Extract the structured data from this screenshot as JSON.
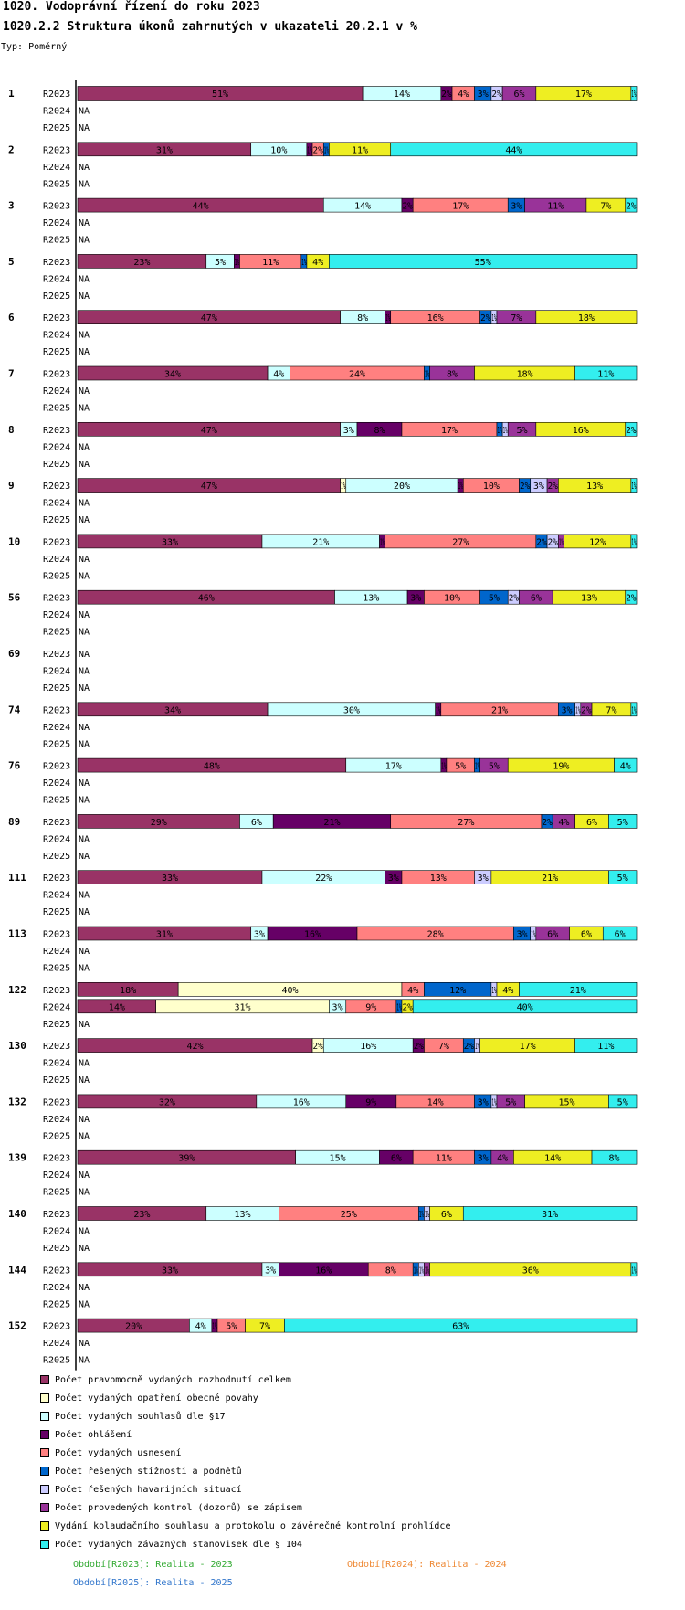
{
  "header": {
    "title": "1020. Vodoprávní řízení do roku 2023",
    "subtitle": "1020.2.2 Struktura úkonů zahrnutých v ukazateli 20.2.1 v %",
    "type_label": "Typ: Poměrný"
  },
  "na_label": "NA",
  "periods_text": [
    {
      "label": "Období[R2023]: Realita - 2023",
      "color": "#33aa33"
    },
    {
      "label": "Období[R2024]: Realita - 2024",
      "color": "#ee8833"
    },
    {
      "label": "Období[R2025]: Realita - 2025",
      "color": "#3377cc"
    }
  ],
  "chart_data": {
    "type": "bar",
    "orientation": "horizontal",
    "stacked": true,
    "title": "1020.2.2 Struktura úkonů zahrnutých v ukazateli 20.2.1 v %",
    "xlim": [
      0,
      100
    ],
    "row_labels": [
      "R2023",
      "R2024",
      "R2025"
    ],
    "series": [
      {
        "name": "Počet pravomocně vydaných rozhodnutí celkem",
        "color": "#993366"
      },
      {
        "name": "Počet vydaných opatření obecné povahy",
        "color": "#ffffcc"
      },
      {
        "name": "Počet vydaných souhlasů dle §17",
        "color": "#ccffff"
      },
      {
        "name": "Počet ohlášení",
        "color": "#660066"
      },
      {
        "name": "Počet vydaných usnesení",
        "color": "#ff8080"
      },
      {
        "name": "Počet řešených stížností a podnětů",
        "color": "#0066cc"
      },
      {
        "name": "Počet řešených havarijních situací",
        "color": "#ccccff"
      },
      {
        "name": "Počet provedených kontrol (dozorů) se zápisem",
        "color": "#993399"
      },
      {
        "name": "Vydání kolaudačního souhlasu a protokolu o závěrečné kontrolní prohlídce",
        "color": "#eeee22"
      },
      {
        "name": "Počet vydaných závazných stanovisek dle § 104",
        "color": "#33eeee"
      }
    ],
    "groups": [
      {
        "label": "1",
        "rows": [
          [
            51,
            0,
            14,
            2,
            4,
            3,
            2,
            6,
            17,
            1
          ],
          null,
          null
        ]
      },
      {
        "label": "2",
        "rows": [
          [
            31,
            0,
            10,
            1,
            2,
            1,
            0,
            0,
            11,
            44
          ],
          null,
          null
        ]
      },
      {
        "label": "3",
        "rows": [
          [
            44,
            0,
            14,
            2,
            17,
            3,
            0,
            11,
            7,
            2
          ],
          null,
          null
        ]
      },
      {
        "label": "5",
        "rows": [
          [
            23,
            0,
            5,
            1,
            11,
            1,
            0,
            0,
            4,
            55
          ],
          null,
          null
        ]
      },
      {
        "label": "6",
        "rows": [
          [
            47,
            0,
            8,
            1,
            16,
            2,
            1,
            7,
            18,
            0
          ],
          null,
          null
        ]
      },
      {
        "label": "7",
        "rows": [
          [
            34,
            0,
            4,
            0,
            24,
            1,
            0,
            8,
            18,
            11
          ],
          null,
          null
        ]
      },
      {
        "label": "8",
        "rows": [
          [
            47,
            0,
            3,
            8,
            17,
            1,
            1,
            5,
            16,
            2
          ],
          null,
          null
        ]
      },
      {
        "label": "9",
        "rows": [
          [
            47,
            1,
            20,
            1,
            10,
            2,
            3,
            2,
            13,
            1
          ],
          null,
          null
        ]
      },
      {
        "label": "10",
        "rows": [
          [
            33,
            0,
            21,
            1,
            27,
            2,
            2,
            1,
            12,
            1
          ],
          null,
          null
        ]
      },
      {
        "label": "56",
        "rows": [
          [
            46,
            0,
            13,
            3,
            10,
            5,
            2,
            6,
            13,
            2
          ],
          null,
          null
        ]
      },
      {
        "label": "69",
        "rows": [
          null,
          null,
          null
        ]
      },
      {
        "label": "74",
        "rows": [
          [
            34,
            0,
            30,
            1,
            21,
            3,
            1,
            2,
            7,
            1
          ],
          null,
          null
        ]
      },
      {
        "label": "76",
        "rows": [
          [
            48,
            0,
            17,
            1,
            5,
            1,
            0,
            5,
            19,
            4
          ],
          null,
          null
        ]
      },
      {
        "label": "89",
        "rows": [
          [
            29,
            0,
            6,
            21,
            27,
            2,
            0,
            4,
            6,
            5
          ],
          null,
          null
        ]
      },
      {
        "label": "111",
        "rows": [
          [
            33,
            0,
            22,
            3,
            13,
            0,
            3,
            0,
            21,
            5
          ],
          null,
          null
        ]
      },
      {
        "label": "113",
        "rows": [
          [
            31,
            0,
            3,
            16,
            28,
            3,
            1,
            6,
            6,
            6
          ],
          null,
          null
        ]
      },
      {
        "label": "122",
        "rows": [
          [
            18,
            40,
            0,
            0,
            4,
            12,
            1,
            0,
            4,
            21
          ],
          [
            14,
            31,
            3,
            0,
            9,
            1,
            0,
            0,
            2,
            40
          ],
          null
        ]
      },
      {
        "label": "130",
        "rows": [
          [
            42,
            2,
            16,
            2,
            7,
            2,
            1,
            0,
            17,
            11
          ],
          null,
          null
        ]
      },
      {
        "label": "132",
        "rows": [
          [
            32,
            0,
            16,
            9,
            14,
            3,
            1,
            5,
            15,
            5
          ],
          null,
          null
        ]
      },
      {
        "label": "139",
        "rows": [
          [
            39,
            0,
            15,
            6,
            11,
            3,
            0,
            4,
            14,
            8
          ],
          null,
          null
        ]
      },
      {
        "label": "140",
        "rows": [
          [
            23,
            0,
            13,
            0,
            25,
            1,
            1,
            0,
            6,
            31
          ],
          null,
          null
        ]
      },
      {
        "label": "144",
        "rows": [
          [
            33,
            0,
            3,
            16,
            8,
            1,
            1,
            1,
            36,
            1
          ],
          null,
          null
        ]
      },
      {
        "label": "152",
        "rows": [
          [
            20,
            0,
            4,
            1,
            5,
            0,
            0,
            0,
            7,
            63
          ],
          null,
          null
        ]
      }
    ]
  }
}
